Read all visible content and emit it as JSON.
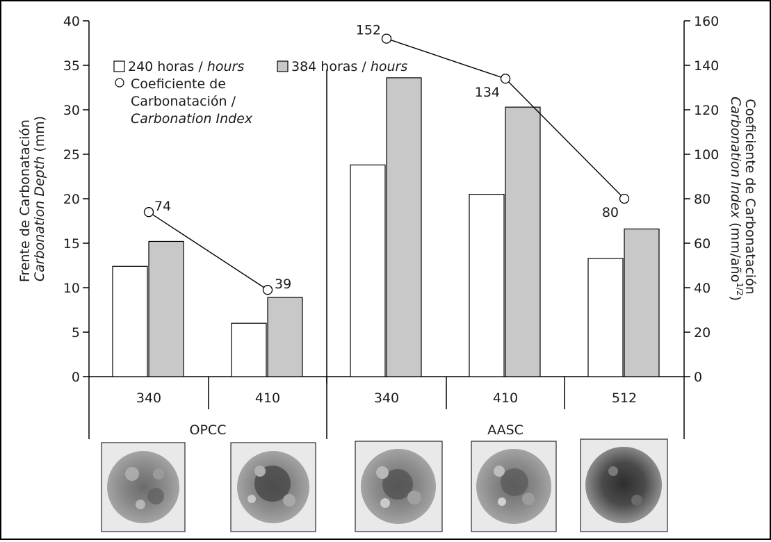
{
  "chart_data": {
    "type": "bar",
    "groups": [
      {
        "name": "OPCC",
        "categories": [
          "340",
          "410"
        ]
      },
      {
        "name": "AASC",
        "categories": [
          "340",
          "410",
          "512"
        ]
      }
    ],
    "categories": [
      "340",
      "410",
      "340",
      "410",
      "512"
    ],
    "series": [
      {
        "name": "240 horas / hours",
        "axis": "left",
        "color": "#ffffff",
        "values": [
          12.4,
          6.0,
          23.8,
          20.5,
          13.3
        ]
      },
      {
        "name": "384 horas / hours",
        "axis": "left",
        "color": "#c8c8c8",
        "values": [
          15.2,
          8.9,
          33.6,
          30.3,
          16.6
        ]
      }
    ],
    "line_series": {
      "name": "Coeficiente de Carbonatación / Carbonation Index",
      "axis": "right",
      "values": [
        74,
        39,
        152,
        134,
        80
      ],
      "labels": [
        "74",
        "39",
        "152",
        "134",
        "80"
      ],
      "segments": [
        [
          0,
          1
        ],
        [
          2,
          3,
          4
        ]
      ]
    },
    "ylim_left": [
      0,
      40
    ],
    "yticks_left": [
      "0",
      "5",
      "10",
      "15",
      "20",
      "25",
      "30",
      "35",
      "40"
    ],
    "ylim_right": [
      0,
      160
    ],
    "yticks_right": [
      "0",
      "20",
      "40",
      "60",
      "80",
      "100",
      "120",
      "140",
      "160"
    ],
    "ylabel_left": {
      "line1": "Frente de Carbonatación",
      "line2_italic": "Carbonation Depth",
      "line2_rest": " (mm)"
    },
    "ylabel_right": {
      "line1": "Coeficiente de Carbonatación",
      "line2_italic": "Carbonation Index",
      "line2_rest": " (mm/año",
      "line2_sup": "1/2",
      "line2_end": ")"
    },
    "legend": {
      "item1_plain": "240 horas / ",
      "item1_italic": "hours",
      "item2_plain": "384 horas / ",
      "item2_italic": "hours",
      "item3_line1": "Coeficiente de",
      "item3_line2": "Carbonatación /",
      "item3_line3_italic": "Carbonation Index",
      "placement": "top-left"
    },
    "grid": false,
    "images": [
      "opcc-340-sample",
      "opcc-410-sample",
      "aasc-340-sample",
      "aasc-410-sample",
      "aasc-512-sample"
    ]
  }
}
